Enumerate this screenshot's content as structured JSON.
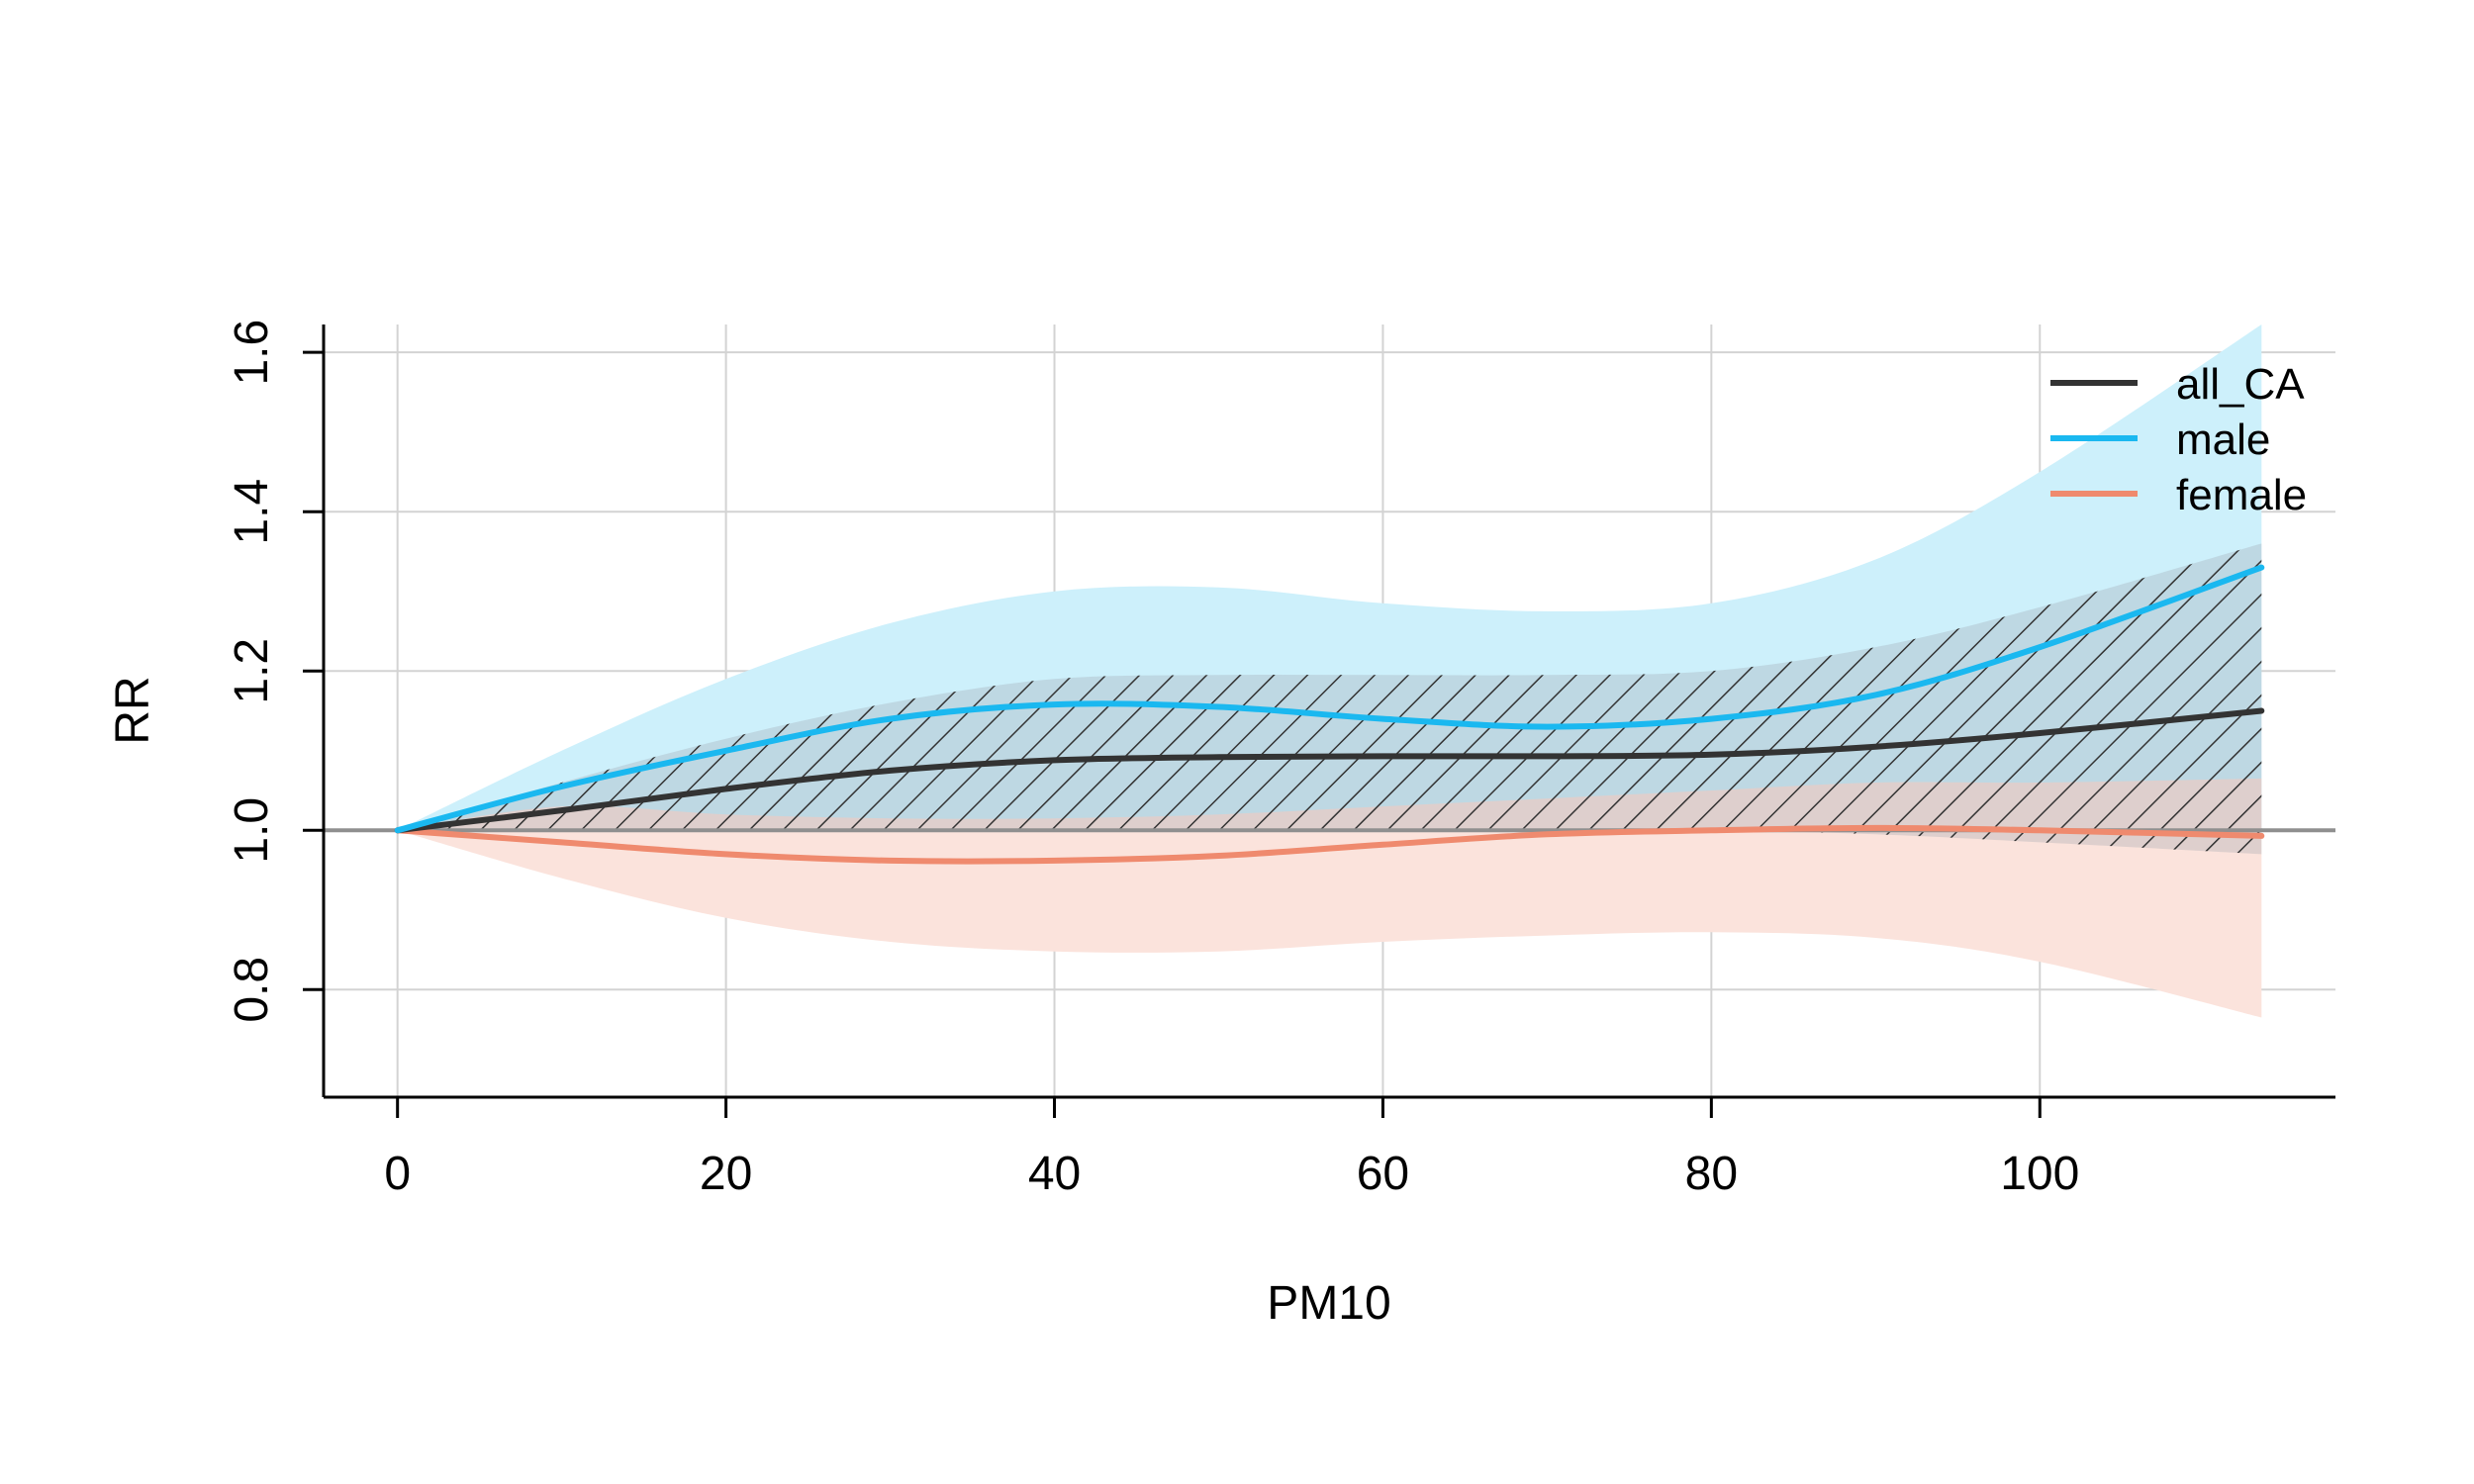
{
  "chart_data": {
    "type": "line",
    "xlabel": "PM10",
    "ylabel": "RR",
    "xlim": [
      -4.5,
      118
    ],
    "ylim": [
      0.665,
      1.635
    ],
    "xticks": [
      0,
      20,
      40,
      60,
      80,
      100
    ],
    "yticks": [
      0.8,
      1.0,
      1.2,
      1.4,
      1.6
    ],
    "ytick_labels": [
      "0.8",
      "1.0",
      "1.2",
      "1.4",
      "1.6"
    ],
    "grid": true,
    "reference_line": 1.0,
    "legend": {
      "position": "top-right",
      "entries": [
        "all_CA",
        "male",
        "female"
      ]
    },
    "x": [
      0,
      10,
      20,
      30,
      40,
      50,
      60,
      70,
      80,
      90,
      100,
      113.5
    ],
    "series": [
      {
        "name": "all_CA",
        "color": "#333333",
        "band_style": "hatched",
        "values": [
          1.0,
          1.025,
          1.052,
          1.075,
          1.088,
          1.092,
          1.093,
          1.093,
          1.095,
          1.105,
          1.122,
          1.15
        ],
        "lower": [
          1.0,
          1.0,
          1.0,
          1.0,
          1.0,
          1.0,
          1.0,
          1.0,
          1.0,
          0.995,
          0.985,
          0.97
        ],
        "upper": [
          1.0,
          1.06,
          1.115,
          1.16,
          1.19,
          1.195,
          1.195,
          1.195,
          1.2,
          1.23,
          1.28,
          1.36
        ]
      },
      {
        "name": "male",
        "color": "#1ab8f0",
        "band_color": "#cdf0fb",
        "values": [
          1.0,
          1.055,
          1.1,
          1.14,
          1.158,
          1.155,
          1.14,
          1.13,
          1.14,
          1.17,
          1.23,
          1.33
        ],
        "lower": [
          1.0,
          1.0,
          1.0,
          1.0,
          1.0,
          1.0,
          1.0,
          1.0,
          1.0,
          1.0,
          1.0,
          1.0
        ],
        "upper": [
          1.0,
          1.1,
          1.19,
          1.26,
          1.3,
          1.305,
          1.285,
          1.275,
          1.285,
          1.34,
          1.45,
          1.635
        ]
      },
      {
        "name": "female",
        "color": "#ef8a6e",
        "band_color": "#fbe3dc",
        "values": [
          1.0,
          0.985,
          0.97,
          0.962,
          0.962,
          0.968,
          0.982,
          0.995,
          1.0,
          1.003,
          1.0,
          0.993
        ],
        "lower": [
          1.0,
          0.94,
          0.89,
          0.86,
          0.848,
          0.848,
          0.86,
          0.868,
          0.872,
          0.865,
          0.835,
          0.765
        ],
        "upper": [
          1.0,
          1.03,
          1.02,
          1.015,
          1.015,
          1.02,
          1.03,
          1.04,
          1.05,
          1.06,
          1.06,
          1.065
        ]
      }
    ]
  }
}
